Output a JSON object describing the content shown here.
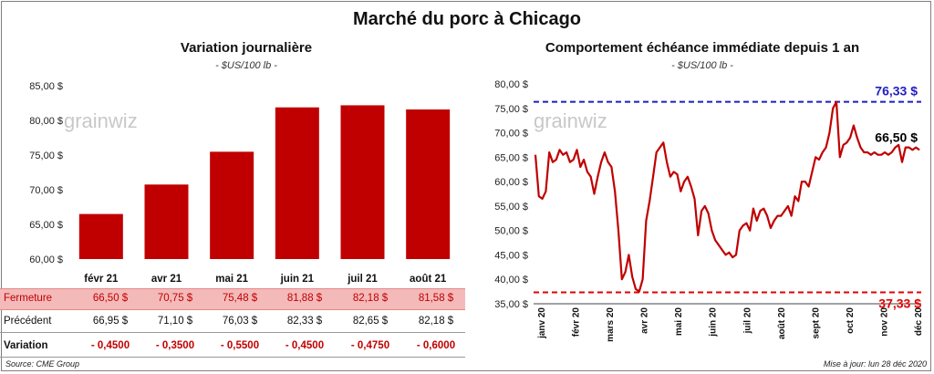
{
  "header": {
    "title": "Marché du porc à Chicago"
  },
  "watermark": {
    "text": "grainwiz"
  },
  "left_chart": {
    "title": "Variation  journalière",
    "subtitle": "- $US/100 lb -"
  },
  "right_chart": {
    "title": "Comportement  échéance immédiate depuis 1 an",
    "subtitle": "- $US/100 lb -"
  },
  "table": {
    "rows": [
      {
        "label": "Fermeture",
        "values": [
          "66,50  $",
          "70,75  $",
          "75,48  $",
          "81,88  $",
          "82,18  $",
          "81,58  $"
        ]
      },
      {
        "label": "Précédent",
        "values": [
          "66,95  $",
          "71,10  $",
          "76,03  $",
          "82,33  $",
          "82,65  $",
          "82,18  $"
        ]
      },
      {
        "label": "Variation",
        "values": [
          "- 0,4500",
          "- 0,3500",
          "- 0,5500",
          "- 0,4500",
          "- 0,4750",
          "- 0,6000"
        ]
      }
    ]
  },
  "footer": {
    "source": "Source: CME Group",
    "updated": "Mise à jour: lun 28 déc 2020"
  },
  "chart_data": [
    {
      "type": "bar",
      "title": "Variation  journalière",
      "subtitle": "- $US/100 lb -",
      "categories": [
        "févr 21",
        "avr 21",
        "mai 21",
        "juin 21",
        "juil 21",
        "août 21"
      ],
      "values": [
        66.5,
        70.75,
        75.48,
        81.88,
        82.18,
        81.58
      ],
      "ylim": [
        60,
        85
      ],
      "yticks": [
        "60,00 $",
        "65,00 $",
        "70,00 $",
        "75,00 $",
        "80,00 $",
        "85,00 $"
      ],
      "color": "#c00000",
      "grid": false
    },
    {
      "type": "line",
      "title": "Comportement  échéance immédiate depuis 1 an",
      "subtitle": "- $US/100 lb -",
      "color": "#c00000",
      "ylim": [
        35,
        80
      ],
      "yticks": [
        "35,00 $",
        "40,00 $",
        "45,00 $",
        "50,00 $",
        "55,00 $",
        "60,00 $",
        "65,00 $",
        "70,00 $",
        "75,00 $",
        "80,00 $"
      ],
      "xticks": [
        "janv 20",
        "févr 20",
        "mars 20",
        "avr 20",
        "mai 20",
        "juin 20",
        "juil 20",
        "août 20",
        "sept 20",
        "oct 20",
        "nov 20",
        "déc 20"
      ],
      "values": [
        65.5,
        57,
        56.5,
        58,
        66,
        64,
        64.5,
        66.5,
        65.5,
        66,
        64,
        64.5,
        66.5,
        63,
        64.5,
        62,
        61,
        57.5,
        61,
        64,
        66,
        64,
        63,
        58,
        50,
        40,
        41.5,
        45,
        40.5,
        38,
        37.5,
        40,
        52,
        56,
        61,
        66,
        67,
        68,
        64,
        61,
        62,
        61.5,
        58,
        60,
        61,
        59,
        56.5,
        49,
        54,
        55,
        53.5,
        50,
        48,
        47,
        46,
        45,
        45.5,
        44.5,
        45,
        50,
        51,
        51.5,
        50,
        54.5,
        52,
        54,
        54.5,
        53,
        50.5,
        52,
        53,
        53,
        54,
        55,
        53,
        57,
        56,
        60,
        60,
        59,
        62,
        65,
        64.5,
        66,
        67,
        70,
        75,
        76.33,
        65,
        67.5,
        68,
        69,
        71.5,
        69,
        67,
        66,
        66,
        65.5,
        66,
        65.5,
        65.5,
        66,
        65.5,
        66,
        67,
        67.5,
        64,
        67,
        67,
        66.5,
        67,
        66.5
      ],
      "annotations": [
        {
          "label": "76,33 $",
          "value": 76.33,
          "color": "#1f1fbf",
          "style": "dashed-line"
        },
        {
          "label": "37,33 $",
          "value": 37.33,
          "color": "#e00000",
          "style": "dashed-line"
        },
        {
          "label": "66,50 $",
          "value": 66.5,
          "color": "#000000",
          "style": "last-value"
        }
      ]
    }
  ]
}
